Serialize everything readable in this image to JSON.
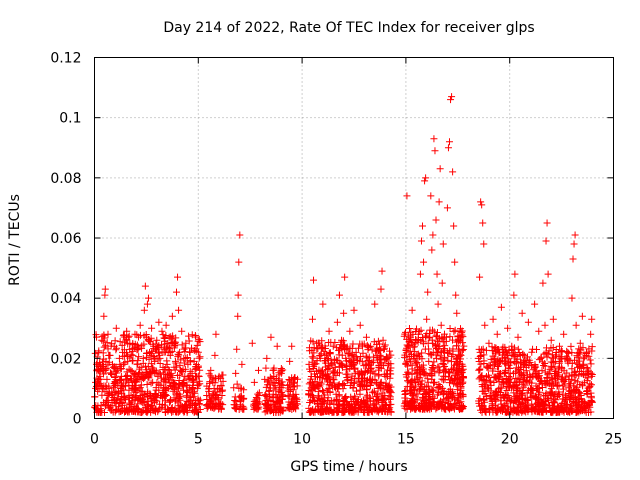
{
  "chart_data": {
    "type": "scatter",
    "title": "Day 214 of 2022, Rate Of TEC Index for receiver glps",
    "xlabel": "GPS time / hours",
    "ylabel": "ROTI / TECUs",
    "xlim": [
      0,
      25
    ],
    "ylim": [
      0,
      0.12
    ],
    "x_ticks": [
      0,
      5,
      10,
      15,
      20,
      25
    ],
    "x_tick_labels": [
      "0",
      "5",
      "10",
      "15",
      "20",
      "25"
    ],
    "y_ticks": [
      0,
      0.02,
      0.04,
      0.06,
      0.08,
      0.1,
      0.12
    ],
    "y_tick_labels": [
      "0",
      "0.02",
      "0.04",
      "0.06",
      "0.08",
      "0.1",
      "0.12"
    ],
    "grid": true,
    "marker": "+",
    "marker_color": "#ff0000",
    "series": [
      {
        "name": "ROTI",
        "points": [
          [
            0.05,
            0.012
          ],
          [
            0.1,
            0.018
          ],
          [
            0.15,
            0.009
          ],
          [
            0.2,
            0.022
          ],
          [
            0.25,
            0.014
          ],
          [
            0.3,
            0.011
          ],
          [
            0.35,
            0.026
          ],
          [
            0.4,
            0.016
          ],
          [
            0.45,
            0.034
          ],
          [
            0.5,
            0.041
          ],
          [
            0.52,
            0.043
          ],
          [
            0.55,
            0.019
          ],
          [
            0.6,
            0.013
          ],
          [
            0.65,
            0.028
          ],
          [
            0.7,
            0.01
          ],
          [
            0.75,
            0.021
          ],
          [
            0.8,
            0.015
          ],
          [
            0.85,
            0.008
          ],
          [
            0.9,
            0.017
          ],
          [
            0.95,
            0.024
          ],
          [
            1.0,
            0.012
          ],
          [
            1.05,
            0.03
          ],
          [
            1.1,
            0.016
          ],
          [
            1.15,
            0.009
          ],
          [
            1.2,
            0.02
          ],
          [
            1.25,
            0.013
          ],
          [
            1.3,
            0.011
          ],
          [
            1.35,
            0.022
          ],
          [
            1.4,
            0.018
          ],
          [
            1.45,
            0.007
          ],
          [
            1.5,
            0.014
          ],
          [
            1.55,
            0.029
          ],
          [
            1.6,
            0.019
          ],
          [
            1.65,
            0.012
          ],
          [
            1.7,
            0.025
          ],
          [
            1.75,
            0.016
          ],
          [
            1.8,
            0.01
          ],
          [
            1.85,
            0.021
          ],
          [
            1.9,
            0.015
          ],
          [
            1.95,
            0.028
          ],
          [
            2.0,
            0.011
          ],
          [
            2.05,
            0.018
          ],
          [
            2.1,
            0.023
          ],
          [
            2.15,
            0.013
          ],
          [
            2.2,
            0.031
          ],
          [
            2.25,
            0.017
          ],
          [
            2.3,
            0.009
          ],
          [
            2.35,
            0.02
          ],
          [
            2.4,
            0.036
          ],
          [
            2.45,
            0.044
          ],
          [
            2.5,
            0.027
          ],
          [
            2.55,
            0.038
          ],
          [
            2.6,
            0.04
          ],
          [
            2.65,
            0.022
          ],
          [
            2.7,
            0.015
          ],
          [
            2.75,
            0.03
          ],
          [
            2.8,
            0.012
          ],
          [
            2.85,
            0.024
          ],
          [
            2.9,
            0.019
          ],
          [
            2.95,
            0.008
          ],
          [
            3.0,
            0.026
          ],
          [
            3.05,
            0.014
          ],
          [
            3.1,
            0.032
          ],
          [
            3.15,
            0.02
          ],
          [
            3.2,
            0.011
          ],
          [
            3.25,
            0.029
          ],
          [
            3.3,
            0.017
          ],
          [
            3.35,
            0.023
          ],
          [
            3.4,
            0.013
          ],
          [
            3.45,
            0.031
          ],
          [
            3.5,
            0.018
          ],
          [
            3.55,
            0.01
          ],
          [
            3.6,
            0.027
          ],
          [
            3.65,
            0.021
          ],
          [
            3.7,
            0.015
          ],
          [
            3.75,
            0.034
          ],
          [
            3.8,
            0.012
          ],
          [
            3.85,
            0.025
          ],
          [
            3.9,
            0.019
          ],
          [
            3.95,
            0.042
          ],
          [
            4.0,
            0.047
          ],
          [
            4.05,
            0.036
          ],
          [
            4.1,
            0.022
          ],
          [
            4.15,
            0.016
          ],
          [
            4.2,
            0.029
          ],
          [
            4.25,
            0.011
          ],
          [
            4.3,
            0.02
          ],
          [
            4.35,
            0.014
          ],
          [
            4.4,
            0.025
          ],
          [
            4.45,
            0.009
          ],
          [
            4.5,
            0.018
          ],
          [
            4.55,
            0.013
          ],
          [
            4.6,
            0.022
          ],
          [
            4.65,
            0.007
          ],
          [
            4.7,
            0.015
          ],
          [
            4.75,
            0.011
          ],
          [
            4.8,
            0.019
          ],
          [
            4.85,
            0.006
          ],
          [
            4.9,
            0.014
          ],
          [
            4.95,
            0.01
          ],
          [
            5.0,
            0.017
          ],
          [
            5.5,
            0.009
          ],
          [
            5.6,
            0.016
          ],
          [
            5.7,
            0.012
          ],
          [
            5.8,
            0.021
          ],
          [
            5.85,
            0.028
          ],
          [
            5.9,
            0.008
          ],
          [
            6.0,
            0.014
          ],
          [
            6.1,
            0.011
          ],
          [
            6.75,
            0.006
          ],
          [
            6.8,
            0.015
          ],
          [
            6.85,
            0.023
          ],
          [
            6.9,
            0.034
          ],
          [
            6.92,
            0.041
          ],
          [
            6.95,
            0.052
          ],
          [
            7.0,
            0.061
          ],
          [
            7.05,
            0.01
          ],
          [
            7.1,
            0.018
          ],
          [
            7.6,
            0.025
          ],
          [
            7.7,
            0.012
          ],
          [
            7.8,
            0.007
          ],
          [
            7.9,
            0.016
          ],
          [
            8.2,
            0.013
          ],
          [
            8.3,
            0.02
          ],
          [
            8.4,
            0.009
          ],
          [
            8.5,
            0.027
          ],
          [
            8.6,
            0.016
          ],
          [
            8.7,
            0.011
          ],
          [
            8.8,
            0.024
          ],
          [
            8.9,
            0.006
          ],
          [
            9.0,
            0.015
          ],
          [
            9.3,
            0.011
          ],
          [
            9.4,
            0.019
          ],
          [
            9.5,
            0.024
          ],
          [
            9.6,
            0.013
          ],
          [
            9.7,
            0.008
          ],
          [
            10.4,
            0.012
          ],
          [
            10.5,
            0.033
          ],
          [
            10.55,
            0.046
          ],
          [
            10.6,
            0.018
          ],
          [
            10.7,
            0.025
          ],
          [
            10.8,
            0.009
          ],
          [
            10.9,
            0.015
          ],
          [
            11.0,
            0.038
          ],
          [
            11.1,
            0.021
          ],
          [
            11.2,
            0.014
          ],
          [
            11.3,
            0.029
          ],
          [
            11.4,
            0.011
          ],
          [
            11.5,
            0.024
          ],
          [
            11.6,
            0.017
          ],
          [
            11.7,
            0.032
          ],
          [
            11.8,
            0.041
          ],
          [
            11.9,
            0.026
          ],
          [
            12.0,
            0.035
          ],
          [
            12.05,
            0.047
          ],
          [
            12.1,
            0.02
          ],
          [
            12.2,
            0.013
          ],
          [
            12.3,
            0.029
          ],
          [
            12.4,
            0.018
          ],
          [
            12.5,
            0.036
          ],
          [
            12.6,
            0.022
          ],
          [
            12.7,
            0.015
          ],
          [
            12.8,
            0.031
          ],
          [
            12.9,
            0.019
          ],
          [
            13.0,
            0.011
          ],
          [
            13.1,
            0.027
          ],
          [
            13.2,
            0.016
          ],
          [
            13.3,
            0.024
          ],
          [
            13.4,
            0.013
          ],
          [
            13.5,
            0.038
          ],
          [
            13.6,
            0.021
          ],
          [
            13.7,
            0.017
          ],
          [
            13.8,
            0.043
          ],
          [
            13.85,
            0.049
          ],
          [
            13.9,
            0.026
          ],
          [
            14.0,
            0.014
          ],
          [
            14.1,
            0.02
          ],
          [
            14.2,
            0.009
          ],
          [
            15.0,
            0.018
          ],
          [
            15.05,
            0.074
          ],
          [
            15.1,
            0.024
          ],
          [
            15.2,
            0.012
          ],
          [
            15.3,
            0.036
          ],
          [
            15.4,
            0.02
          ],
          [
            15.5,
            0.015
          ],
          [
            15.6,
            0.028
          ],
          [
            15.7,
            0.048
          ],
          [
            15.75,
            0.059
          ],
          [
            15.8,
            0.064
          ],
          [
            15.85,
            0.052
          ],
          [
            15.9,
            0.079
          ],
          [
            15.95,
            0.08
          ],
          [
            16.0,
            0.033
          ],
          [
            16.05,
            0.042
          ],
          [
            16.1,
            0.019
          ],
          [
            16.15,
            0.027
          ],
          [
            16.2,
            0.074
          ],
          [
            16.25,
            0.056
          ],
          [
            16.3,
            0.061
          ],
          [
            16.35,
            0.093
          ],
          [
            16.4,
            0.089
          ],
          [
            16.45,
            0.066
          ],
          [
            16.5,
            0.048
          ],
          [
            16.55,
            0.038
          ],
          [
            16.6,
            0.072
          ],
          [
            16.65,
            0.083
          ],
          [
            16.7,
            0.031
          ],
          [
            16.75,
            0.045
          ],
          [
            16.8,
            0.058
          ],
          [
            16.85,
            0.022
          ],
          [
            16.9,
            0.014
          ],
          [
            16.95,
            0.027
          ],
          [
            17.0,
            0.07
          ],
          [
            17.05,
            0.09
          ],
          [
            17.1,
            0.092
          ],
          [
            17.15,
            0.106
          ],
          [
            17.2,
            0.107
          ],
          [
            17.25,
            0.082
          ],
          [
            17.3,
            0.064
          ],
          [
            17.35,
            0.052
          ],
          [
            17.4,
            0.041
          ],
          [
            17.45,
            0.035
          ],
          [
            17.5,
            0.018
          ],
          [
            17.55,
            0.026
          ],
          [
            17.6,
            0.012
          ],
          [
            17.65,
            0.021
          ],
          [
            17.7,
            0.016
          ],
          [
            18.5,
            0.02
          ],
          [
            18.55,
            0.047
          ],
          [
            18.6,
            0.072
          ],
          [
            18.65,
            0.071
          ],
          [
            18.7,
            0.065
          ],
          [
            18.75,
            0.058
          ],
          [
            18.8,
            0.031
          ],
          [
            18.9,
            0.017
          ],
          [
            19.0,
            0.025
          ],
          [
            19.1,
            0.011
          ],
          [
            19.2,
            0.033
          ],
          [
            19.3,
            0.019
          ],
          [
            19.4,
            0.028
          ],
          [
            19.5,
            0.014
          ],
          [
            19.6,
            0.037
          ],
          [
            19.7,
            0.022
          ],
          [
            19.8,
            0.016
          ],
          [
            19.9,
            0.03
          ],
          [
            20.0,
            0.012
          ],
          [
            20.1,
            0.024
          ],
          [
            20.2,
            0.041
          ],
          [
            20.25,
            0.048
          ],
          [
            20.3,
            0.019
          ],
          [
            20.4,
            0.027
          ],
          [
            20.5,
            0.013
          ],
          [
            20.6,
            0.035
          ],
          [
            20.7,
            0.021
          ],
          [
            20.8,
            0.017
          ],
          [
            20.9,
            0.032
          ],
          [
            21.0,
            0.01
          ],
          [
            21.1,
            0.023
          ],
          [
            21.2,
            0.038
          ],
          [
            21.3,
            0.014
          ],
          [
            21.4,
            0.029
          ],
          [
            21.5,
            0.02
          ],
          [
            21.6,
            0.045
          ],
          [
            21.7,
            0.031
          ],
          [
            21.75,
            0.059
          ],
          [
            21.8,
            0.065
          ],
          [
            21.85,
            0.048
          ],
          [
            21.9,
            0.015
          ],
          [
            22.0,
            0.026
          ],
          [
            22.1,
            0.033
          ],
          [
            22.2,
            0.019
          ],
          [
            22.3,
            0.011
          ],
          [
            22.4,
            0.024
          ],
          [
            22.5,
            0.017
          ],
          [
            22.6,
            0.028
          ],
          [
            22.7,
            0.013
          ],
          [
            22.8,
            0.022
          ],
          [
            22.9,
            0.009
          ],
          [
            23.0,
            0.04
          ],
          [
            23.05,
            0.053
          ],
          [
            23.1,
            0.058
          ],
          [
            23.15,
            0.061
          ],
          [
            23.2,
            0.031
          ],
          [
            23.3,
            0.018
          ],
          [
            23.4,
            0.025
          ],
          [
            23.5,
            0.034
          ],
          [
            23.6,
            0.012
          ],
          [
            23.7,
            0.022
          ],
          [
            23.8,
            0.015
          ],
          [
            23.9,
            0.028
          ],
          [
            23.95,
            0.033
          ]
        ]
      }
    ],
    "dense_bands": [
      {
        "x_start": 0.0,
        "x_end": 5.1,
        "y_low": 0.002,
        "y_high": 0.028,
        "count": 700,
        "seed": 11
      },
      {
        "x_start": 5.4,
        "x_end": 6.2,
        "y_low": 0.003,
        "y_high": 0.015,
        "count": 70,
        "seed": 12
      },
      {
        "x_start": 6.7,
        "x_end": 7.2,
        "y_low": 0.003,
        "y_high": 0.012,
        "count": 30,
        "seed": 13
      },
      {
        "x_start": 7.6,
        "x_end": 8.0,
        "y_low": 0.003,
        "y_high": 0.01,
        "count": 25,
        "seed": 14
      },
      {
        "x_start": 8.2,
        "x_end": 9.1,
        "y_low": 0.002,
        "y_high": 0.017,
        "count": 110,
        "seed": 15
      },
      {
        "x_start": 9.3,
        "x_end": 9.8,
        "y_low": 0.003,
        "y_high": 0.014,
        "count": 50,
        "seed": 16
      },
      {
        "x_start": 10.3,
        "x_end": 14.3,
        "y_low": 0.002,
        "y_high": 0.026,
        "count": 620,
        "seed": 17
      },
      {
        "x_start": 14.9,
        "x_end": 17.8,
        "y_low": 0.003,
        "y_high": 0.03,
        "count": 520,
        "seed": 18
      },
      {
        "x_start": 18.5,
        "x_end": 24.0,
        "y_low": 0.002,
        "y_high": 0.024,
        "count": 820,
        "seed": 19
      }
    ]
  }
}
